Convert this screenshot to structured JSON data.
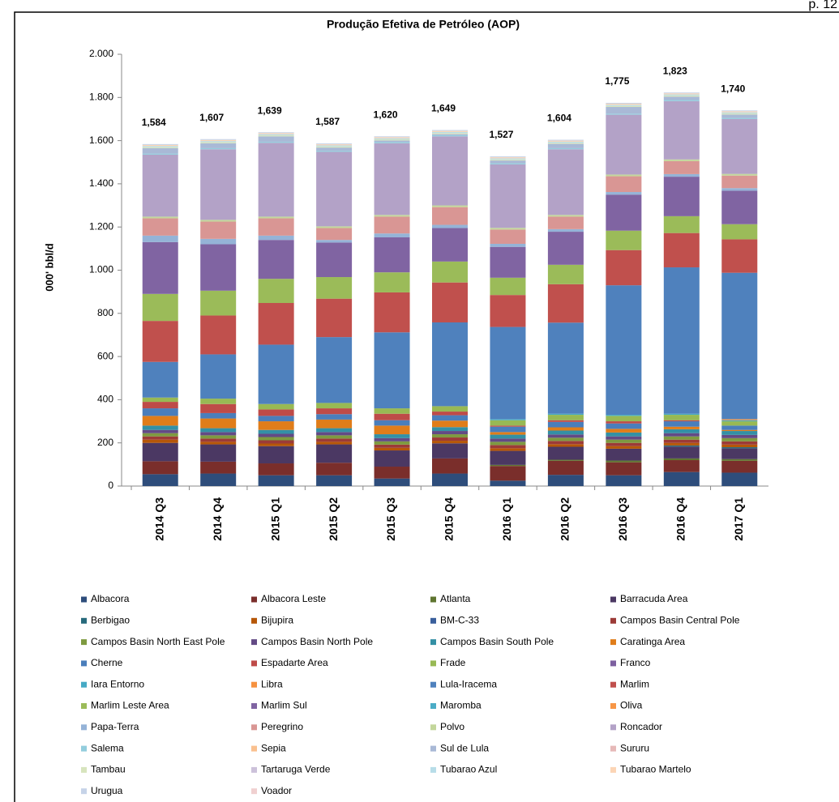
{
  "page_number": "p. 12",
  "chart_data": {
    "type": "stacked-bar",
    "title": "Produção Efetiva de Petróleo (AOP)",
    "y_label": "000' bbl/d",
    "categories": [
      "2014 Q3",
      "2014 Q4",
      "2015 Q1",
      "2015 Q2",
      "2015 Q3",
      "2015 Q4",
      "2016 Q1",
      "2016 Q2",
      "2016 Q3",
      "2016 Q4",
      "2017 Q1"
    ],
    "ylim": [
      0,
      2000
    ],
    "yticks": [
      0,
      200,
      400,
      600,
      800,
      {
        "value": 1000,
        "label": "1.000"
      },
      {
        "value": 1200,
        "label": "1.200"
      },
      {
        "value": 1400,
        "label": "1.400"
      },
      {
        "value": 1600,
        "label": "1.600"
      },
      {
        "value": 1800,
        "label": "1.800"
      },
      {
        "value": 2000,
        "label": "2.000"
      }
    ],
    "grid": false,
    "legend": "bottom",
    "totals": {
      "values": [
        1584,
        1607,
        1639,
        1587,
        1620,
        1649,
        1527,
        1604,
        1775,
        1823,
        1740
      ],
      "value_labels": [
        "1,584",
        "1,607",
        "1,639",
        "1,587",
        "1,620",
        "1,649",
        "1,527",
        "1,604",
        "1,775",
        "1,823",
        "1,740"
      ]
    },
    "series": [
      {
        "name": "Albacora",
        "color": "#2e4d7b",
        "values": [
          55,
          58,
          50,
          50,
          35,
          58,
          25,
          52,
          50,
          65,
          62
        ]
      },
      {
        "name": "Albacora Leste",
        "color": "#7a2e2b",
        "values": [
          60,
          55,
          55,
          58,
          55,
          70,
          68,
          65,
          60,
          55,
          55
        ]
      },
      {
        "name": "Atlanta",
        "color": "#5f7530",
        "values": [
          0,
          0,
          0,
          0,
          0,
          0,
          5,
          5,
          8,
          8,
          8
        ]
      },
      {
        "name": "Barracuda Area",
        "color": "#4b3863",
        "values": [
          85,
          80,
          80,
          85,
          75,
          70,
          65,
          60,
          55,
          55,
          50
        ]
      },
      {
        "name": "Berbigao",
        "color": "#276a7c",
        "values": [
          0,
          0,
          0,
          0,
          0,
          0,
          0,
          0,
          0,
          5,
          5
        ]
      },
      {
        "name": "Bijupira",
        "color": "#b65708",
        "values": [
          15,
          12,
          12,
          12,
          12,
          12,
          12,
          12,
          12,
          12,
          12
        ]
      },
      {
        "name": "BM-C-33",
        "color": "#3a5f9c",
        "values": [
          0,
          0,
          0,
          0,
          0,
          0,
          0,
          0,
          0,
          0,
          0
        ]
      },
      {
        "name": "Campos Basin Central Pole",
        "color": "#9c3b37",
        "values": [
          15,
          15,
          15,
          15,
          15,
          15,
          15,
          15,
          15,
          15,
          15
        ]
      },
      {
        "name": "Campos Basin North East Pole",
        "color": "#7e9a40",
        "values": [
          15,
          15,
          15,
          15,
          15,
          15,
          15,
          15,
          15,
          15,
          15
        ]
      },
      {
        "name": "Campos Basin North Pole",
        "color": "#634a85",
        "values": [
          15,
          15,
          15,
          15,
          15,
          15,
          15,
          15,
          15,
          15,
          15
        ]
      },
      {
        "name": "Campos Basin South Pole",
        "color": "#3490a5",
        "values": [
          20,
          18,
          18,
          18,
          18,
          18,
          18,
          18,
          18,
          18,
          18
        ]
      },
      {
        "name": "Caratinga Area",
        "color": "#e07d1a",
        "values": [
          45,
          45,
          40,
          40,
          40,
          30,
          12,
          15,
          17,
          12,
          5
        ]
      },
      {
        "name": "Cherne",
        "color": "#4a7ebb",
        "values": [
          35,
          25,
          25,
          25,
          25,
          25,
          25,
          25,
          25,
          25,
          20
        ]
      },
      {
        "name": "Espadarte Area",
        "color": "#be4b48",
        "values": [
          30,
          42,
          30,
          27,
          30,
          17,
          5,
          8,
          10,
          5,
          0
        ]
      },
      {
        "name": "Frade",
        "color": "#98b954",
        "values": [
          20,
          25,
          25,
          25,
          25,
          25,
          25,
          25,
          25,
          25,
          20
        ]
      },
      {
        "name": "Franco",
        "color": "#7d60a0",
        "values": [
          0,
          0,
          0,
          0,
          0,
          0,
          0,
          0,
          0,
          0,
          0
        ]
      },
      {
        "name": "Iara Entorno",
        "color": "#46aac5",
        "values": [
          0,
          0,
          0,
          0,
          0,
          0,
          5,
          5,
          5,
          5,
          5
        ]
      },
      {
        "name": "Libra",
        "color": "#f69240",
        "values": [
          0,
          0,
          0,
          0,
          0,
          0,
          0,
          0,
          0,
          0,
          5
        ]
      },
      {
        "name": "Lula-Iracema",
        "color": "#4f81bd",
        "values": [
          165,
          205,
          275,
          305,
          352,
          388,
          427,
          422,
          600,
          678,
          678
        ]
      },
      {
        "name": "Marlim",
        "color": "#c0504d",
        "values": [
          190,
          180,
          193,
          178,
          185,
          185,
          148,
          178,
          163,
          159,
          155
        ]
      },
      {
        "name": "Marlim Leste Area",
        "color": "#9bbb59",
        "values": [
          125,
          115,
          112,
          100,
          93,
          97,
          80,
          90,
          90,
          78,
          70
        ]
      },
      {
        "name": "Marlim Sul",
        "color": "#8064a2",
        "values": [
          240,
          215,
          180,
          160,
          162,
          155,
          143,
          153,
          167,
          183,
          155
        ]
      },
      {
        "name": "Maromba",
        "color": "#4bacc6",
        "values": [
          0,
          0,
          0,
          0,
          0,
          0,
          0,
          0,
          0,
          0,
          0
        ]
      },
      {
        "name": "Oliva",
        "color": "#f79646",
        "values": [
          0,
          0,
          0,
          0,
          0,
          0,
          0,
          0,
          0,
          0,
          0
        ]
      },
      {
        "name": "Papa-Terra",
        "color": "#95b3d7",
        "values": [
          30,
          25,
          20,
          12,
          18,
          15,
          14,
          12,
          12,
          12,
          12
        ]
      },
      {
        "name": "Peregrino",
        "color": "#d99694",
        "values": [
          80,
          80,
          80,
          55,
          78,
          82,
          66,
          58,
          73,
          60,
          58
        ]
      },
      {
        "name": "Polvo",
        "color": "#c3d69b",
        "values": [
          8,
          8,
          8,
          8,
          8,
          8,
          8,
          8,
          8,
          8,
          8
        ]
      },
      {
        "name": "Roncador",
        "color": "#b3a2c7",
        "values": [
          287,
          327,
          342,
          345,
          332,
          320,
          294,
          304,
          277,
          270,
          254
        ]
      },
      {
        "name": "Salema",
        "color": "#93cddd",
        "values": [
          5,
          5,
          5,
          5,
          5,
          5,
          5,
          5,
          5,
          5,
          5
        ]
      },
      {
        "name": "Sepia",
        "color": "#fac08f",
        "values": [
          0,
          0,
          0,
          0,
          0,
          0,
          0,
          0,
          0,
          0,
          0
        ]
      },
      {
        "name": "Sul de Lula",
        "color": "#a9b9d6",
        "values": [
          25,
          23,
          25,
          15,
          8,
          5,
          13,
          20,
          31,
          16,
          16
        ]
      },
      {
        "name": "Sururu",
        "color": "#e6b9b8",
        "values": [
          0,
          0,
          0,
          0,
          0,
          0,
          0,
          0,
          0,
          0,
          0
        ]
      },
      {
        "name": "Tambau",
        "color": "#d7e4bd",
        "values": [
          5,
          5,
          5,
          5,
          5,
          5,
          5,
          5,
          5,
          5,
          5
        ]
      },
      {
        "name": "Tartaruga Verde",
        "color": "#ccc1da",
        "values": [
          0,
          0,
          0,
          0,
          0,
          0,
          0,
          0,
          0,
          0,
          0
        ]
      },
      {
        "name": "Tubarao Azul",
        "color": "#b7dde8",
        "values": [
          5,
          5,
          5,
          5,
          5,
          5,
          5,
          5,
          5,
          5,
          5
        ]
      },
      {
        "name": "Tubarao Martelo",
        "color": "#fcd5b5",
        "values": [
          5,
          5,
          5,
          5,
          5,
          5,
          5,
          5,
          5,
          5,
          5
        ]
      },
      {
        "name": "Urugua",
        "color": "#c6d3e8",
        "values": [
          4,
          4,
          4,
          4,
          4,
          4,
          4,
          4,
          4,
          4,
          4
        ]
      },
      {
        "name": "Voador",
        "color": "#f0d0d0",
        "values": [
          0,
          0,
          0,
          0,
          0,
          0,
          0,
          0,
          0,
          0,
          0
        ]
      }
    ]
  }
}
